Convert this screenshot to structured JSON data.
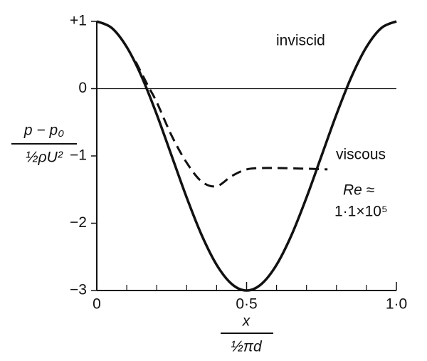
{
  "chart_data": {
    "type": "line",
    "ylabel": {
      "numerator": "p − p₀",
      "denominator": "½ρU²"
    },
    "xlabel": {
      "numerator": "x",
      "denominator": "½πd"
    },
    "annotations": [
      "Re ≈",
      "1·1×10⁵"
    ],
    "series": [
      {
        "name": "inviscid",
        "color": "#111111",
        "dash": false,
        "x": [
          0,
          0.05,
          0.1,
          0.15,
          0.2,
          0.25,
          0.3,
          0.35,
          0.4,
          0.45,
          0.5,
          0.55,
          0.6,
          0.65,
          0.7,
          0.75,
          0.8,
          0.85,
          0.9,
          0.95,
          1.0
        ],
        "values": [
          1,
          0.902,
          0.618,
          0.176,
          -0.382,
          -1,
          -1.618,
          -2.176,
          -2.618,
          -2.902,
          -3,
          -2.902,
          -2.618,
          -2.176,
          -1.618,
          -1,
          -0.382,
          0.176,
          0.618,
          0.902,
          1
        ]
      },
      {
        "name": "viscous",
        "color": "#111111",
        "dash": true,
        "x": [
          0.13,
          0.17,
          0.2,
          0.25,
          0.3,
          0.35,
          0.4,
          0.45,
          0.5,
          0.55,
          0.6,
          0.7,
          0.77
        ],
        "values": [
          0.4,
          0.05,
          -0.2,
          -0.7,
          -1.1,
          -1.38,
          -1.45,
          -1.3,
          -1.2,
          -1.18,
          -1.18,
          -1.19,
          -1.2
        ]
      }
    ],
    "xlim": [
      0,
      1.0
    ],
    "ylim": [
      -3,
      1
    ],
    "xticks": [
      {
        "value": 0,
        "label": "0"
      },
      {
        "value": 0.5,
        "label": "0·5"
      },
      {
        "value": 1.0,
        "label": "1·0"
      }
    ],
    "xminorticks": [
      0.1,
      0.2,
      0.3,
      0.4,
      0.6,
      0.7,
      0.8,
      0.9
    ],
    "yticks": [
      {
        "value": 1,
        "label": "+1"
      },
      0,
      {
        "value": -1,
        "label": "−1"
      },
      {
        "value": -2,
        "label": "−2"
      },
      {
        "value": -3,
        "label": "−3"
      }
    ],
    "zero_line": true
  }
}
